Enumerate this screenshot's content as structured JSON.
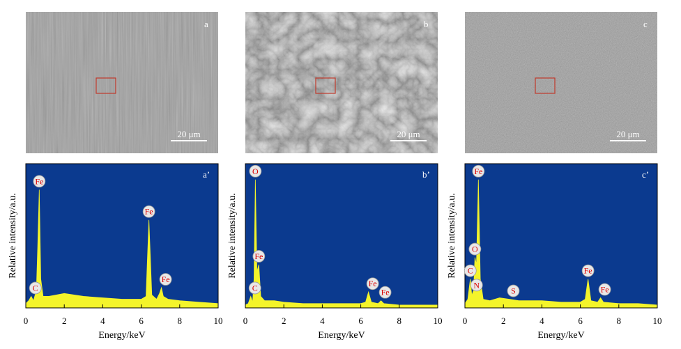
{
  "images": [
    {
      "label": "a",
      "scale_bar": "20 μm",
      "texture": "streaks"
    },
    {
      "label": "b",
      "scale_bar": "20 μm",
      "texture": "cracked"
    },
    {
      "label": "c",
      "scale_bar": "20 μm",
      "texture": "speckled"
    }
  ],
  "chart_data": [
    {
      "type": "area",
      "label": "a’",
      "xlabel": "Energy/keV",
      "ylabel": "Relative intensity/a.u.",
      "background": "#0b3a8f",
      "color": "#f4f42a",
      "xlim": [
        0,
        10
      ],
      "xticks": [
        0,
        2,
        4,
        6,
        8,
        10
      ],
      "ylim": [
        0,
        100
      ],
      "x": [
        0,
        0.15,
        0.28,
        0.4,
        0.55,
        0.62,
        0.7,
        0.78,
        0.9,
        1.2,
        2,
        3,
        4,
        5,
        6,
        6.25,
        6.4,
        6.55,
        6.8,
        6.95,
        7.05,
        7.15,
        7.4,
        8,
        9,
        10
      ],
      "values": [
        3,
        5,
        8,
        5,
        12,
        42,
        82,
        20,
        8,
        8,
        10,
        8,
        7,
        6,
        6,
        8,
        61,
        9,
        6,
        10,
        14,
        8,
        6,
        5,
        4,
        3
      ],
      "peaks": [
        {
          "label": "C",
          "x": 0.28,
          "y": 8
        },
        {
          "label": "Fe",
          "x": 0.7,
          "y": 82
        },
        {
          "label": "Fe",
          "x": 6.4,
          "y": 61
        },
        {
          "label": "Fe",
          "x": 7.05,
          "y": 14
        }
      ]
    },
    {
      "type": "area",
      "label": "b’",
      "xlabel": "Energy/keV",
      "ylabel": "Relative intensity/a.u.",
      "background": "#0b3a8f",
      "color": "#f4f42a",
      "xlim": [
        0,
        10
      ],
      "xticks": [
        0,
        2,
        4,
        6,
        8,
        10
      ],
      "ylim": [
        0,
        100
      ],
      "x": [
        0,
        0.15,
        0.28,
        0.38,
        0.45,
        0.52,
        0.6,
        0.7,
        0.8,
        1.0,
        1.5,
        2,
        3,
        4,
        5,
        6,
        6.25,
        6.4,
        6.55,
        6.9,
        7.05,
        7.2,
        8,
        9,
        10
      ],
      "values": [
        2,
        3,
        8,
        4,
        20,
        89,
        25,
        30,
        8,
        5,
        5,
        4,
        3,
        3,
        3,
        3,
        4,
        11,
        4,
        3,
        5,
        3,
        2,
        2,
        2
      ],
      "peaks": [
        {
          "label": "C",
          "x": 0.28,
          "y": 8
        },
        {
          "label": "O",
          "x": 0.52,
          "y": 89
        },
        {
          "label": "Fe",
          "x": 0.7,
          "y": 30
        },
        {
          "label": "Fe",
          "x": 6.4,
          "y": 11
        },
        {
          "label": "Fe",
          "x": 7.05,
          "y": 5
        }
      ]
    },
    {
      "type": "area",
      "label": "c’",
      "xlabel": "Energy/keV",
      "ylabel": "Relative intensity/a.u.",
      "background": "#0b3a8f",
      "color": "#f4f42a",
      "xlim": [
        0,
        10
      ],
      "xticks": [
        0,
        2,
        4,
        6,
        8,
        10
      ],
      "ylim": [
        0,
        100
      ],
      "x": [
        0,
        0.15,
        0.28,
        0.36,
        0.39,
        0.45,
        0.52,
        0.6,
        0.7,
        0.8,
        0.95,
        1.3,
        1.8,
        2.3,
        2.8,
        4,
        5,
        6,
        6.25,
        6.4,
        6.55,
        6.9,
        7.05,
        7.2,
        8,
        9,
        10
      ],
      "values": [
        3,
        6,
        20,
        8,
        10,
        12,
        35,
        30,
        89,
        20,
        6,
        5,
        7,
        6,
        5,
        5,
        4,
        4,
        6,
        20,
        5,
        4,
        7,
        4,
        3,
        3,
        2
      ],
      "peaks": [
        {
          "label": "C",
          "x": 0.28,
          "y": 20
        },
        {
          "label": "N",
          "x": 0.39,
          "y": 10
        },
        {
          "label": "O",
          "x": 0.52,
          "y": 35
        },
        {
          "label": "Fe",
          "x": 0.7,
          "y": 89
        },
        {
          "label": "S",
          "x": 2.3,
          "y": 6
        },
        {
          "label": "Fe",
          "x": 6.4,
          "y": 20
        },
        {
          "label": "Fe",
          "x": 7.05,
          "y": 7
        }
      ]
    }
  ]
}
